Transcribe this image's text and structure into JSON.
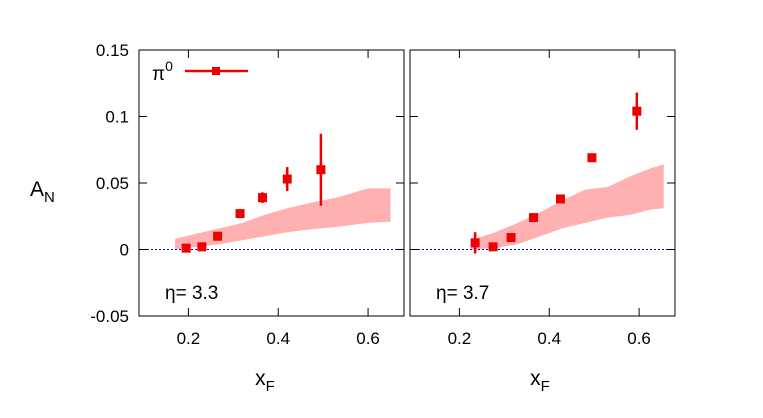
{
  "chart_data": {
    "type": "scatter",
    "ylabel": "A",
    "ylabel_sub": "N",
    "ylim": [
      -0.05,
      0.15
    ],
    "y_ticks": [
      "0.15",
      "0.1",
      "0.05",
      "0",
      "-0.05"
    ],
    "y_tick_values": [
      0.15,
      0.1,
      0.05,
      0,
      -0.05
    ],
    "legend": {
      "label": "π",
      "superscript": "0",
      "placement": "top-left"
    },
    "colors": {
      "points": "#ee0000",
      "band": "#ffb0b0",
      "zero_line": "#0000cc",
      "frame": "#000000"
    },
    "panels": [
      {
        "xlabel": "x",
        "xlabel_sub": "F",
        "xlim": [
          0.09,
          0.68
        ],
        "x_ticks": [
          "0.2",
          "0.4",
          "0.6"
        ],
        "x_tick_values": [
          0.2,
          0.4,
          0.6
        ],
        "annotation_symbol": "η",
        "annotation_value": "= 3.3",
        "series": {
          "x": [
            0.195,
            0.23,
            0.265,
            0.315,
            0.365,
            0.42,
            0.495
          ],
          "y": [
            0.001,
            0.002,
            0.01,
            0.027,
            0.039,
            0.053,
            0.06
          ],
          "err": [
            0.001,
            0.002,
            0.002,
            0.002,
            0.004,
            0.009,
            0.027
          ]
        },
        "band": {
          "x": [
            0.17,
            0.22,
            0.27,
            0.32,
            0.37,
            0.42,
            0.47,
            0.53,
            0.6,
            0.65
          ],
          "upper": [
            0.008,
            0.012,
            0.016,
            0.02,
            0.026,
            0.031,
            0.035,
            0.039,
            0.046,
            0.046
          ],
          "lower": [
            0.0,
            0.002,
            0.004,
            0.007,
            0.01,
            0.013,
            0.015,
            0.017,
            0.02,
            0.021
          ]
        }
      },
      {
        "xlabel": "x",
        "xlabel_sub": "F",
        "xlim": [
          0.09,
          0.68
        ],
        "x_ticks": [
          "0.2",
          "0.4",
          "0.6"
        ],
        "x_tick_values": [
          0.2,
          0.4,
          0.6
        ],
        "annotation_symbol": "η",
        "annotation_value": "= 3.7",
        "series": {
          "x": [
            0.235,
            0.275,
            0.315,
            0.365,
            0.425,
            0.495,
            0.595
          ],
          "y": [
            0.005,
            0.002,
            0.009,
            0.024,
            0.038,
            0.069,
            0.104
          ],
          "err": [
            0.008,
            0.002,
            0.002,
            0.002,
            0.002,
            0.003,
            0.014
          ]
        },
        "band": {
          "x": [
            0.225,
            0.28,
            0.33,
            0.38,
            0.43,
            0.48,
            0.53,
            0.58,
            0.625,
            0.655
          ],
          "upper": [
            0.007,
            0.013,
            0.02,
            0.028,
            0.037,
            0.045,
            0.047,
            0.055,
            0.061,
            0.064
          ],
          "lower": [
            0.0,
            0.001,
            0.004,
            0.01,
            0.016,
            0.02,
            0.024,
            0.026,
            0.03,
            0.031
          ]
        }
      }
    ]
  }
}
